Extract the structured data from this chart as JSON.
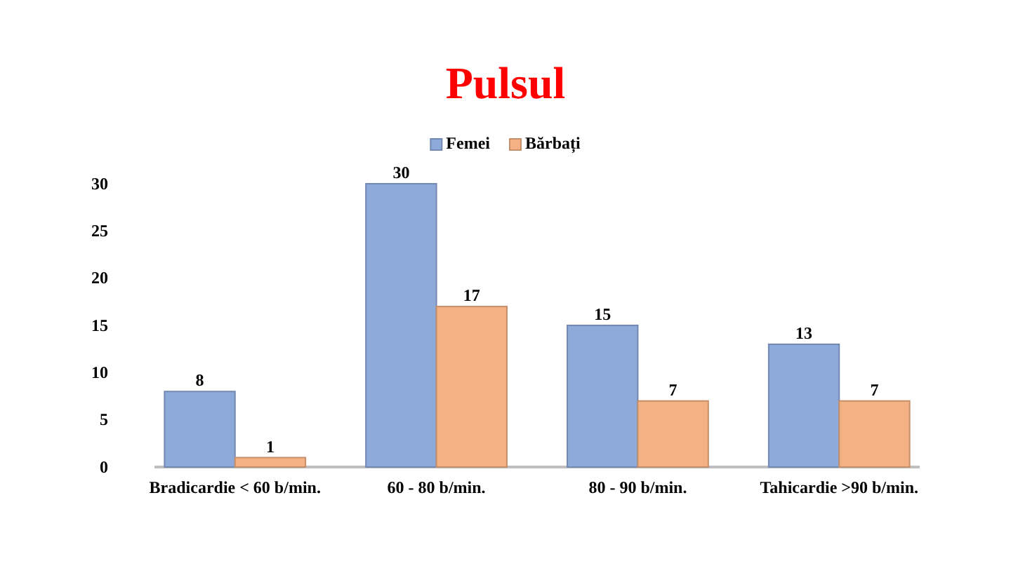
{
  "chart_data": {
    "type": "bar",
    "title": "Pulsul",
    "categories": [
      "Bradicardie < 60 b/min.",
      "60 - 80 b/min.",
      "80 - 90 b/min.",
      "Tahicardie >90 b/min."
    ],
    "series": [
      {
        "name": "Femei",
        "color": "#8eaadb",
        "values": [
          8,
          30,
          15,
          13
        ]
      },
      {
        "name": "Bărbați",
        "color": "#f4b183",
        "values": [
          1,
          17,
          7,
          7
        ]
      }
    ],
    "ylim": [
      0,
      30
    ],
    "yticks": [
      0,
      5,
      10,
      15,
      20,
      25,
      30
    ],
    "grid": false,
    "legend": "top",
    "data_labels": true
  }
}
